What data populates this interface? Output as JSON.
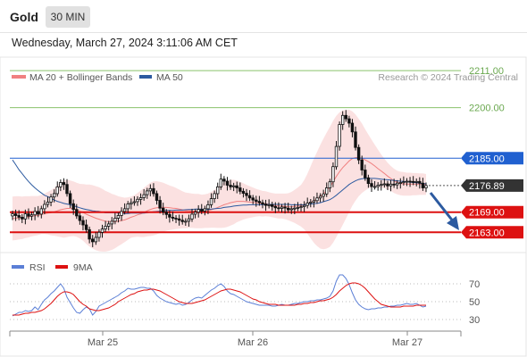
{
  "header": {
    "instrument": "Gold",
    "timeframe": "30 MIN"
  },
  "timestamp": "Wednesday, March 27, 2024 3:11:06 AM CET",
  "legend": {
    "bollinger": {
      "label": "MA 20 + Bollinger Bands",
      "color": "#f08080"
    },
    "ma50": {
      "label": "MA 50",
      "color": "#2c5aa0"
    }
  },
  "source": "Research © 2024 Trading Central",
  "levels": {
    "r2": "2211.00",
    "r1": "2200.00",
    "pivot": "2185.00",
    "last": "2176.89",
    "s1": "2169.00",
    "s2": "2163.00"
  },
  "rsi_legend": {
    "rsi": {
      "label": "RSI",
      "color": "#5b7fd6"
    },
    "ma9": {
      "label": "9MA",
      "color": "#dd1111"
    }
  },
  "rsi_ticks": [
    "70",
    "50",
    "30"
  ],
  "x_labels": [
    "Mar 25",
    "Mar 26",
    "Mar 27"
  ],
  "chart_data": {
    "type": "candlestick",
    "price_ylim": [
      2157,
      2215
    ],
    "rsi_ylim": [
      20,
      80
    ],
    "close": [
      2168.5,
      2168,
      2167.5,
      2167,
      2168.5,
      2167.8,
      2168.2,
      2169.2,
      2168.4,
      2170,
      2171.3,
      2172,
      2173.5,
      2174.5,
      2176.5,
      2177.8,
      2177.2,
      2174.5,
      2171.5,
      2169.8,
      2167.9,
      2166.5,
      2165.2,
      2163.8,
      2161,
      2160.2,
      2161.5,
      2163,
      2164,
      2164.8,
      2165.5,
      2166.3,
      2167.2,
      2168,
      2169.2,
      2170,
      2171.4,
      2171.8,
      2172.1,
      2172.8,
      2173.3,
      2174.2,
      2175.3,
      2176,
      2174.5,
      2172.5,
      2170.2,
      2169,
      2168.3,
      2167.5,
      2167.2,
      2167,
      2166.6,
      2166.2,
      2166.3,
      2167,
      2168.4,
      2169,
      2169.8,
      2169.3,
      2170,
      2171.2,
      2173,
      2174.5,
      2176.5,
      2178.8,
      2178.2,
      2177,
      2176.5,
      2176.8,
      2176.2,
      2175.2,
      2174.6,
      2173.9,
      2173.2,
      2172.6,
      2172.2,
      2171.8,
      2171.4,
      2171,
      2171.2,
      2170.7,
      2170.3,
      2170.1,
      2170.5,
      2170.2,
      2169.7,
      2170,
      2170.2,
      2170.4,
      2170.6,
      2171,
      2171.7,
      2172,
      2172.4,
      2173.2,
      2173.7,
      2174.4,
      2176.2,
      2178,
      2182.5,
      2188.5,
      2195,
      2197.7,
      2196.7,
      2195.4,
      2192.8,
      2188.2,
      2184.5,
      2181.5,
      2179.2,
      2177.5,
      2176.6,
      2176.6,
      2177,
      2177.2,
      2177.4,
      2176.8,
      2177.3,
      2177.1,
      2177.6,
      2177.8,
      2178,
      2178.2,
      2178.1,
      2177.9,
      2178.1,
      2177.6,
      2176.2,
      2176.9
    ],
    "ma20": [
      2167.1,
      2167.2,
      2167.3,
      2167.3,
      2167.5,
      2167.6,
      2167.8,
      2167.9,
      2168,
      2168.3,
      2168.5,
      2168.7,
      2168.8,
      2169.1,
      2169.4,
      2169.7,
      2169.9,
      2170.1,
      2170.1,
      2170,
      2169.7,
      2169.3,
      2168.9,
      2168.4,
      2168,
      2167.6,
      2167.2,
      2166.9,
      2166.6,
      2166.3,
      2166.2,
      2166.1,
      2166.2,
      2166.3,
      2166.5,
      2166.7,
      2167.1,
      2167.5,
      2167.8,
      2168.2,
      2168.5,
      2168.9,
      2169.4,
      2169.8,
      2170.1,
      2170.3,
      2170.4,
      2170.4,
      2170.4,
      2170.3,
      2170.2,
      2170.1,
      2169.9,
      2169.7,
      2169.5,
      2169.5,
      2169.4,
      2169.3,
      2169.3,
      2169.2,
      2169.3,
      2169.4,
      2169.7,
      2170,
      2170.4,
      2170.8,
      2171.2,
      2171.5,
      2171.8,
      2172,
      2172.2,
      2172.2,
      2172.2,
      2172.1,
      2172,
      2171.9,
      2171.8,
      2171.7,
      2171.5,
      2171.5,
      2171.3,
      2171.1,
      2170.9,
      2170.8,
      2170.8,
      2170.7,
      2170.6,
      2170.6,
      2170.7,
      2170.8,
      2170.9,
      2171.2,
      2171.5,
      2171.9,
      2172.4,
      2172.9,
      2173.6,
      2174.4,
      2175.4,
      2176.5,
      2178,
      2179.6,
      2181,
      2182.2,
      2183.2,
      2184.2,
      2184.9,
      2185.2,
      2185.2,
      2185,
      2184.5,
      2184,
      2183.4,
      2182.7,
      2181.9,
      2181.2,
      2180.5,
      2179.7,
      2179,
      2178.3,
      2177.8,
      2177.5,
      2177.4,
      2177.3,
      2177.3,
      2177.3,
      2177.3,
      2177.3,
      2177.3,
      2177.2
    ],
    "bb_width": [
      6.5,
      6.5,
      6.4,
      6.3,
      6.2,
      6.1,
      6,
      5.9,
      5.8,
      5.8,
      6,
      6.3,
      6.7,
      7.1,
      7.6,
      8.1,
      8.5,
      8.5,
      8.3,
      8.1,
      8,
      8.1,
      8.4,
      8.8,
      9.2,
      9.4,
      9.5,
      9.5,
      9.3,
      9,
      8.7,
      8.3,
      7.9,
      7.4,
      7,
      6.6,
      6.3,
      6.1,
      6.2,
      6.5,
      6.9,
      7.3,
      7.6,
      7.9,
      8,
      7.9,
      7.6,
      7.3,
      6.9,
      6.6,
      6.4,
      6.1,
      5.8,
      5.5,
      5.3,
      5.2,
      5.1,
      5.1,
      5.1,
      5,
      5,
      5.1,
      5.3,
      5.6,
      6.1,
      6.5,
      6.8,
      6.9,
      6.8,
      6.6,
      6.2,
      5.8,
      5.4,
      5,
      4.7,
      4.4,
      4.1,
      3.9,
      3.8,
      3.7,
      3.6,
      3.6,
      3.6,
      3.7,
      3.7,
      3.8,
      4,
      4.4,
      4.9,
      5.5,
      6.2,
      7.3,
      8.9,
      10.7,
      12.5,
      14,
      15.4,
      16.4,
      17.2,
      17.8,
      18.1,
      18,
      17.6,
      17,
      16.1,
      15.2,
      14,
      12.8,
      11.5,
      10.3,
      9.1,
      8,
      7.1,
      6.3,
      5.6,
      4.9,
      4.4,
      4,
      3.7,
      3.6,
      3.5,
      3.5,
      3.5,
      3.4,
      3.4,
      3.3,
      3.3,
      3.2,
      3.2,
      3.1
    ],
    "ma50": [
      2184.5,
      2183.1,
      2181.6,
      2180.4,
      2179.2,
      2178.1,
      2177.1,
      2176.2,
      2175.4,
      2174.7,
      2174,
      2173.6,
      2173.1,
      2172.6,
      2172.2,
      2171.9,
      2171.6,
      2171.4,
      2171.2,
      2170.9,
      2170.6,
      2170.3,
      2170,
      2169.8,
      2169.6,
      2169.4,
      2169.3,
      2169.2,
      2169,
      2168.8,
      2168.8,
      2168.8,
      2168.8,
      2168.7,
      2168.7,
      2168.6,
      2168.6,
      2168.7,
      2168.7,
      2168.7,
      2168.7,
      2168.7,
      2168.8,
      2169,
      2169.1,
      2169.2,
      2169.3,
      2169.4,
      2169.5,
      2169.5,
      2169.5,
      2169.6,
      2169.6,
      2169.6,
      2169.7,
      2169.8,
      2169.8,
      2169.9,
      2169.9,
      2169.9,
      2169.8,
      2169.8,
      2169.9,
      2170,
      2170.1,
      2170.2,
      2170.4,
      2170.5,
      2170.6,
      2170.8,
      2170.9,
      2171,
      2171.1,
      2171.1,
      2171.2,
      2171.2,
      2171.2,
      2171.2,
      2171.2,
      2171.3,
      2171.3,
      2171.3,
      2171.3,
      2171.3,
      2171.3,
      2171.3,
      2171.3,
      2171.2,
      2171.2,
      2171.2,
      2171.2,
      2171.2,
      2171.3,
      2171.4,
      2171.5,
      2171.6,
      2171.8,
      2172.1,
      2172.4,
      2172.7,
      2173.3,
      2174,
      2174.8,
      2175.6,
      2176.4,
      2177.2,
      2177.8,
      2178.3,
      2178.7,
      2178.9,
      2179,
      2179,
      2179,
      2179,
      2178.9,
      2178.8,
      2178.7,
      2178.6,
      2178.5,
      2178.4,
      2178.3,
      2178.2,
      2178.1,
      2178,
      2177.9,
      2177.8,
      2177.7,
      2177.6,
      2177.5,
      2177.4
    ],
    "rsi": [
      34,
      36,
      38,
      38,
      40,
      39,
      40,
      44,
      41,
      47,
      52,
      55,
      59,
      62,
      66,
      70,
      65,
      55,
      49,
      43,
      38,
      37,
      41,
      44,
      42,
      35,
      39,
      45,
      47,
      49,
      51,
      53,
      55,
      57,
      60,
      62,
      65,
      64,
      64,
      65,
      66,
      66,
      65,
      65,
      62,
      57,
      54,
      52,
      50,
      49,
      48,
      47,
      48,
      46,
      47,
      49,
      52,
      54,
      55,
      54,
      57,
      60,
      63,
      65,
      68,
      70,
      67,
      62,
      59,
      58,
      56,
      54,
      52,
      50,
      49,
      48,
      47,
      46,
      46,
      46,
      46,
      45,
      45,
      46,
      47,
      46,
      46,
      47,
      48,
      48,
      49,
      50,
      50,
      51,
      51,
      52,
      52,
      53,
      54,
      56,
      62,
      73,
      80,
      80,
      76,
      69,
      60,
      52,
      47,
      44,
      42,
      41,
      42,
      42,
      43,
      43,
      44,
      44,
      45,
      45,
      46,
      46,
      47,
      48,
      47,
      47,
      48,
      46,
      44,
      45
    ],
    "rsi_ma9": [
      35,
      35,
      35,
      36,
      37,
      37,
      38,
      38,
      39,
      40,
      42,
      45,
      48,
      52,
      56,
      59,
      61,
      61,
      60,
      58,
      54,
      50,
      47,
      45,
      42,
      41,
      40,
      40,
      41,
      42,
      43,
      45,
      47,
      50,
      52,
      54,
      56,
      58,
      59,
      61,
      62,
      63,
      63,
      64,
      64,
      63,
      62,
      60,
      58,
      56,
      54,
      52,
      50,
      49,
      48,
      48,
      48,
      49,
      50,
      51,
      52,
      54,
      56,
      58,
      60,
      62,
      63,
      64,
      64,
      63,
      62,
      61,
      59,
      57,
      55,
      53,
      52,
      50,
      49,
      48,
      47,
      47,
      47,
      46,
      46,
      46,
      46,
      46,
      46,
      47,
      47,
      48,
      48,
      49,
      49,
      50,
      51,
      51,
      52,
      53,
      55,
      58,
      62,
      65,
      68,
      70,
      71,
      71,
      70,
      68,
      65,
      61,
      57,
      53,
      50,
      47,
      46,
      45,
      44,
      44,
      44,
      44,
      45,
      45,
      45,
      45,
      46,
      46,
      46,
      46
    ]
  }
}
